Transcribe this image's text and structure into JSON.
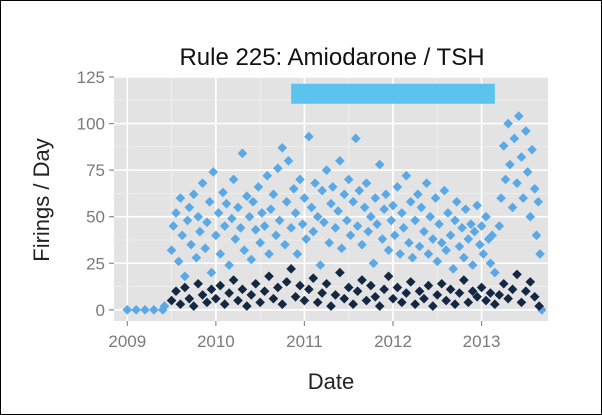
{
  "chart_data": {
    "type": "scatter",
    "title": "Rule 225: Amiodarone / TSH",
    "xlabel": "Date",
    "ylabel": "Firings / Day",
    "xlim": [
      2008.85,
      2013.75
    ],
    "ylim": [
      -6,
      125
    ],
    "x_ticks": [
      "2009",
      "2010",
      "2011",
      "2012",
      "2013"
    ],
    "y_ticks": [
      "0",
      "25",
      "50",
      "75",
      "100",
      "125"
    ],
    "grid": true,
    "legend": "none",
    "colors": {
      "light": "#5aa9e6",
      "dark": "#142844",
      "band": "#5cc3ef",
      "panel": "#e3e3e3"
    },
    "annotation_band": {
      "x_start": 2010.85,
      "x_end": 2013.15,
      "y": 116
    },
    "series": [
      {
        "color": "light",
        "points": [
          [
            2009.0,
            0
          ],
          [
            2009.1,
            0
          ],
          [
            2009.2,
            0
          ],
          [
            2009.3,
            0
          ],
          [
            2009.4,
            0
          ],
          [
            2009.42,
            2
          ],
          [
            2009.5,
            32
          ],
          [
            2009.52,
            45
          ],
          [
            2009.55,
            52
          ],
          [
            2009.58,
            26
          ],
          [
            2009.6,
            60
          ],
          [
            2009.62,
            40
          ],
          [
            2009.65,
            18
          ],
          [
            2009.68,
            48
          ],
          [
            2009.7,
            55
          ],
          [
            2009.72,
            35
          ],
          [
            2009.75,
            62
          ],
          [
            2009.78,
            28
          ],
          [
            2009.8,
            50
          ],
          [
            2009.82,
            42
          ],
          [
            2009.85,
            68
          ],
          [
            2009.88,
            33
          ],
          [
            2009.9,
            47
          ],
          [
            2009.93,
            58
          ],
          [
            2009.95,
            20
          ],
          [
            2009.97,
            74
          ],
          [
            2010.0,
            40
          ],
          [
            2010.03,
            52
          ],
          [
            2010.05,
            30
          ],
          [
            2010.08,
            63
          ],
          [
            2010.1,
            45
          ],
          [
            2010.12,
            57
          ],
          [
            2010.15,
            24
          ],
          [
            2010.18,
            49
          ],
          [
            2010.2,
            70
          ],
          [
            2010.22,
            38
          ],
          [
            2010.25,
            55
          ],
          [
            2010.28,
            44
          ],
          [
            2010.3,
            84
          ],
          [
            2010.32,
            32
          ],
          [
            2010.35,
            61
          ],
          [
            2010.38,
            50
          ],
          [
            2010.4,
            27
          ],
          [
            2010.42,
            58
          ],
          [
            2010.45,
            43
          ],
          [
            2010.48,
            66
          ],
          [
            2010.5,
            36
          ],
          [
            2010.52,
            52
          ],
          [
            2010.55,
            45
          ],
          [
            2010.58,
            72
          ],
          [
            2010.6,
            30
          ],
          [
            2010.62,
            54
          ],
          [
            2010.65,
            62
          ],
          [
            2010.68,
            40
          ],
          [
            2010.7,
            76
          ],
          [
            2010.72,
            48
          ],
          [
            2010.75,
            87
          ],
          [
            2010.78,
            35
          ],
          [
            2010.8,
            58
          ],
          [
            2010.82,
            80
          ],
          [
            2010.85,
            44
          ],
          [
            2010.88,
            65
          ],
          [
            2010.9,
            52
          ],
          [
            2010.92,
            30
          ],
          [
            2010.95,
            70
          ],
          [
            2010.98,
            46
          ],
          [
            2011.0,
            60
          ],
          [
            2011.02,
            38
          ],
          [
            2011.05,
            93
          ],
          [
            2011.08,
            55
          ],
          [
            2011.1,
            42
          ],
          [
            2011.12,
            68
          ],
          [
            2011.15,
            50
          ],
          [
            2011.18,
            24
          ],
          [
            2011.2,
            64
          ],
          [
            2011.22,
            47
          ],
          [
            2011.25,
            75
          ],
          [
            2011.28,
            36
          ],
          [
            2011.3,
            57
          ],
          [
            2011.32,
            66
          ],
          [
            2011.35,
            44
          ],
          [
            2011.38,
            53
          ],
          [
            2011.4,
            80
          ],
          [
            2011.42,
            33
          ],
          [
            2011.45,
            62
          ],
          [
            2011.48,
            48
          ],
          [
            2011.5,
            70
          ],
          [
            2011.52,
            40
          ],
          [
            2011.55,
            58
          ],
          [
            2011.58,
            92
          ],
          [
            2011.6,
            45
          ],
          [
            2011.62,
            64
          ],
          [
            2011.65,
            35
          ],
          [
            2011.68,
            55
          ],
          [
            2011.7,
            68
          ],
          [
            2011.72,
            42
          ],
          [
            2011.75,
            50
          ],
          [
            2011.78,
            25
          ],
          [
            2011.8,
            60
          ],
          [
            2011.82,
            46
          ],
          [
            2011.85,
            78
          ],
          [
            2011.88,
            38
          ],
          [
            2011.9,
            54
          ],
          [
            2011.92,
            62
          ],
          [
            2011.95,
            32
          ],
          [
            2011.98,
            48
          ],
          [
            2012.0,
            56
          ],
          [
            2012.02,
            40
          ],
          [
            2012.05,
            66
          ],
          [
            2012.08,
            30
          ],
          [
            2012.1,
            52
          ],
          [
            2012.12,
            44
          ],
          [
            2012.15,
            72
          ],
          [
            2012.18,
            36
          ],
          [
            2012.2,
            58
          ],
          [
            2012.22,
            28
          ],
          [
            2012.25,
            48
          ],
          [
            2012.28,
            62
          ],
          [
            2012.3,
            34
          ],
          [
            2012.32,
            55
          ],
          [
            2012.35,
            42
          ],
          [
            2012.38,
            68
          ],
          [
            2012.4,
            30
          ],
          [
            2012.42,
            50
          ],
          [
            2012.45,
            38
          ],
          [
            2012.48,
            60
          ],
          [
            2012.5,
            26
          ],
          [
            2012.52,
            46
          ],
          [
            2012.55,
            36
          ],
          [
            2012.58,
            64
          ],
          [
            2012.6,
            32
          ],
          [
            2012.62,
            52
          ],
          [
            2012.65,
            40
          ],
          [
            2012.68,
            22
          ],
          [
            2012.7,
            48
          ],
          [
            2012.72,
            58
          ],
          [
            2012.75,
            34
          ],
          [
            2012.78,
            44
          ],
          [
            2012.8,
            28
          ],
          [
            2012.82,
            54
          ],
          [
            2012.85,
            38
          ],
          [
            2012.88,
            46
          ],
          [
            2012.9,
            24
          ],
          [
            2012.92,
            42
          ],
          [
            2012.95,
            56
          ],
          [
            2012.98,
            35
          ],
          [
            2013.0,
            45
          ],
          [
            2013.02,
            30
          ],
          [
            2013.05,
            50
          ],
          [
            2013.08,
            38
          ],
          [
            2013.1,
            25
          ],
          [
            2013.12,
            40
          ],
          [
            2013.15,
            20
          ],
          [
            2013.2,
            45
          ],
          [
            2013.22,
            60
          ],
          [
            2013.25,
            88
          ],
          [
            2013.27,
            70
          ],
          [
            2013.3,
            100
          ],
          [
            2013.32,
            78
          ],
          [
            2013.35,
            55
          ],
          [
            2013.37,
            92
          ],
          [
            2013.4,
            68
          ],
          [
            2013.42,
            104
          ],
          [
            2013.45,
            82
          ],
          [
            2013.47,
            60
          ],
          [
            2013.5,
            96
          ],
          [
            2013.52,
            74
          ],
          [
            2013.55,
            50
          ],
          [
            2013.57,
            86
          ],
          [
            2013.6,
            65
          ],
          [
            2013.62,
            40
          ],
          [
            2013.64,
            58
          ],
          [
            2013.66,
            30
          ],
          [
            2013.68,
            0
          ]
        ]
      },
      {
        "color": "dark",
        "points": [
          [
            2009.5,
            5
          ],
          [
            2009.55,
            10
          ],
          [
            2009.6,
            3
          ],
          [
            2009.65,
            12
          ],
          [
            2009.7,
            6
          ],
          [
            2009.75,
            2
          ],
          [
            2009.8,
            14
          ],
          [
            2009.85,
            8
          ],
          [
            2009.9,
            4
          ],
          [
            2009.95,
            11
          ],
          [
            2010.0,
            6
          ],
          [
            2010.05,
            13
          ],
          [
            2010.1,
            3
          ],
          [
            2010.15,
            9
          ],
          [
            2010.2,
            16
          ],
          [
            2010.25,
            5
          ],
          [
            2010.3,
            11
          ],
          [
            2010.35,
            2
          ],
          [
            2010.4,
            8
          ],
          [
            2010.45,
            14
          ],
          [
            2010.5,
            4
          ],
          [
            2010.55,
            10
          ],
          [
            2010.6,
            18
          ],
          [
            2010.65,
            6
          ],
          [
            2010.7,
            12
          ],
          [
            2010.75,
            3
          ],
          [
            2010.8,
            15
          ],
          [
            2010.85,
            22
          ],
          [
            2010.9,
            7
          ],
          [
            2010.95,
            13
          ],
          [
            2011.0,
            5
          ],
          [
            2011.05,
            11
          ],
          [
            2011.1,
            17
          ],
          [
            2011.15,
            4
          ],
          [
            2011.2,
            9
          ],
          [
            2011.25,
            14
          ],
          [
            2011.3,
            2
          ],
          [
            2011.35,
            8
          ],
          [
            2011.4,
            20
          ],
          [
            2011.45,
            6
          ],
          [
            2011.5,
            12
          ],
          [
            2011.55,
            3
          ],
          [
            2011.6,
            10
          ],
          [
            2011.65,
            16
          ],
          [
            2011.7,
            5
          ],
          [
            2011.75,
            13
          ],
          [
            2011.8,
            7
          ],
          [
            2011.85,
            2
          ],
          [
            2011.9,
            11
          ],
          [
            2011.95,
            18
          ],
          [
            2012.0,
            6
          ],
          [
            2012.05,
            12
          ],
          [
            2012.1,
            4
          ],
          [
            2012.15,
            9
          ],
          [
            2012.2,
            15
          ],
          [
            2012.25,
            3
          ],
          [
            2012.3,
            10
          ],
          [
            2012.35,
            6
          ],
          [
            2012.4,
            13
          ],
          [
            2012.45,
            2
          ],
          [
            2012.5,
            8
          ],
          [
            2012.55,
            14
          ],
          [
            2012.6,
            5
          ],
          [
            2012.65,
            11
          ],
          [
            2012.7,
            3
          ],
          [
            2012.75,
            9
          ],
          [
            2012.8,
            16
          ],
          [
            2012.85,
            4
          ],
          [
            2012.9,
            10
          ],
          [
            2012.95,
            7
          ],
          [
            2013.0,
            12
          ],
          [
            2013.05,
            5
          ],
          [
            2013.1,
            9
          ],
          [
            2013.15,
            3
          ],
          [
            2013.2,
            8
          ],
          [
            2013.25,
            14
          ],
          [
            2013.3,
            6
          ],
          [
            2013.35,
            11
          ],
          [
            2013.4,
            19
          ],
          [
            2013.45,
            4
          ],
          [
            2013.5,
            10
          ],
          [
            2013.55,
            15
          ],
          [
            2013.6,
            7
          ],
          [
            2013.65,
            2
          ]
        ]
      }
    ]
  }
}
